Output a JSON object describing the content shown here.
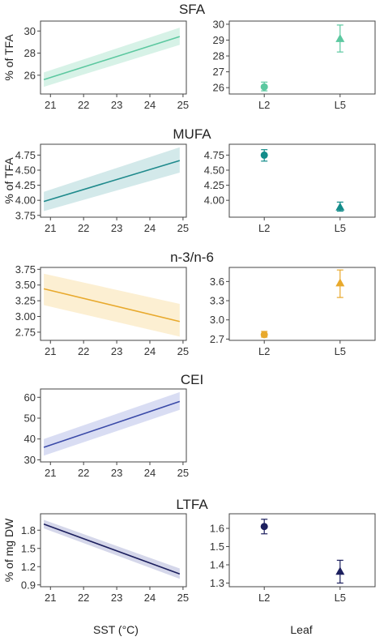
{
  "figure": {
    "x_axis_label_left": "SST (°C)",
    "x_axis_label_right": "Leaf"
  },
  "chart_data": [
    {
      "title": "SFA",
      "trend": {
        "type": "line",
        "ylabel": "% of TFA",
        "xlim": [
          20.7,
          25.1
        ],
        "ylim": [
          24.3,
          30.9
        ],
        "x_ticks": [
          21,
          22,
          23,
          24,
          25
        ],
        "y_ticks": [
          26,
          28,
          30
        ],
        "x": [
          20.8,
          24.9
        ],
        "y": [
          25.6,
          29.5
        ],
        "ci_lower": [
          24.95,
          28.75
        ],
        "ci_upper": [
          26.25,
          30.3
        ],
        "color": "#5cc8a0",
        "fill": "#d7f2e7"
      },
      "leaf": {
        "type": "scatter",
        "show": true,
        "ylabel": "",
        "categories": [
          "L2",
          "L5"
        ],
        "values": [
          26.05,
          29.1
        ],
        "err_low": [
          25.8,
          28.25
        ],
        "err_high": [
          26.35,
          29.95
        ],
        "markers": [
          "circle",
          "triangle"
        ],
        "ylim": [
          25.6,
          30.2
        ],
        "y_ticks": [
          26,
          27,
          28,
          29,
          30
        ],
        "color": "#5cc8a0"
      }
    },
    {
      "title": "MUFA",
      "trend": {
        "type": "line",
        "ylabel": "% of TFA",
        "xlim": [
          20.7,
          25.1
        ],
        "ylim": [
          3.72,
          4.93
        ],
        "x_ticks": [
          21,
          22,
          23,
          24,
          25
        ],
        "y_ticks": [
          3.75,
          4.0,
          4.25,
          4.5,
          4.75
        ],
        "y_tick_labels": [
          "3.75",
          "4.00",
          "4.25",
          "4.50",
          "4.75"
        ],
        "x": [
          20.8,
          24.9
        ],
        "y": [
          3.98,
          4.66
        ],
        "ci_lower": [
          3.82,
          4.46
        ],
        "ci_upper": [
          4.14,
          4.88
        ],
        "color": "#1f8a8c",
        "fill": "#d3e9ea"
      },
      "leaf": {
        "type": "scatter",
        "show": true,
        "ylabel": "",
        "categories": [
          "L2",
          "L5"
        ],
        "values": [
          4.75,
          3.89
        ],
        "err_low": [
          4.65,
          3.82
        ],
        "err_high": [
          4.84,
          3.97
        ],
        "markers": [
          "circle",
          "triangle"
        ],
        "ylim": [
          3.72,
          4.93
        ],
        "y_ticks": [
          4.0,
          4.25,
          4.5,
          4.75
        ],
        "y_tick_labels": [
          "4.00",
          "4.25",
          "4.50",
          "4.75"
        ],
        "color": "#138c8a"
      }
    },
    {
      "title": "n-3/n-6",
      "trend": {
        "type": "line",
        "ylabel": "",
        "xlim": [
          20.7,
          25.1
        ],
        "ylim": [
          2.62,
          3.78
        ],
        "x_ticks": [
          21,
          22,
          23,
          24,
          25
        ],
        "y_ticks": [
          2.75,
          3.0,
          3.25,
          3.5,
          3.75
        ],
        "y_tick_labels": [
          "2.75",
          "3.00",
          "3.25",
          "3.50",
          "3.75"
        ],
        "x": [
          20.8,
          24.9
        ],
        "y": [
          3.44,
          2.92
        ],
        "ci_lower": [
          3.18,
          2.68
        ],
        "ci_upper": [
          3.68,
          3.2
        ],
        "color": "#e8a92c",
        "fill": "#fcefd2"
      },
      "leaf": {
        "type": "scatter",
        "show": true,
        "ylabel": "",
        "categories": [
          "L2",
          "L5"
        ],
        "values": [
          2.77,
          3.58
        ],
        "err_low": [
          2.73,
          3.35
        ],
        "err_high": [
          2.82,
          3.78
        ],
        "markers": [
          "circle",
          "triangle"
        ],
        "ylim": [
          2.68,
          3.82
        ],
        "y_ticks": [
          2.7,
          3.0,
          3.3,
          3.6
        ],
        "y_tick_labels": [
          "2.7",
          "3.0",
          "3.3",
          "3.6"
        ],
        "color": "#e8a92c"
      }
    },
    {
      "title": "CEI",
      "trend": {
        "type": "line",
        "ylabel": "",
        "xlim": [
          20.7,
          25.1
        ],
        "ylim": [
          29,
          64
        ],
        "x_ticks": [
          21,
          22,
          23,
          24,
          25
        ],
        "y_ticks": [
          30,
          40,
          50,
          60
        ],
        "x": [
          20.8,
          24.9
        ],
        "y": [
          36,
          58
        ],
        "ci_lower": [
          32,
          54
        ],
        "ci_upper": [
          40,
          62.5
        ],
        "color": "#3a4aa8",
        "fill": "#d9ddf3"
      },
      "leaf": {
        "show": false
      }
    },
    {
      "title": "LTFA",
      "trend": {
        "type": "line",
        "ylabel": "% of mg DW",
        "xlim": [
          20.7,
          25.1
        ],
        "ylim": [
          0.87,
          2.07
        ],
        "x_ticks": [
          21,
          22,
          23,
          24,
          25
        ],
        "y_ticks": [
          0.9,
          1.2,
          1.5,
          1.8
        ],
        "y_tick_labels": [
          "0.9",
          "1.2",
          "1.5",
          "1.8"
        ],
        "x": [
          20.8,
          24.9
        ],
        "y": [
          1.9,
          1.08
        ],
        "ci_lower": [
          1.83,
          1.0
        ],
        "ci_upper": [
          1.97,
          1.17
        ],
        "color": "#1c1f5e",
        "fill": "#d5d7ea"
      },
      "leaf": {
        "type": "scatter",
        "show": true,
        "ylabel": "",
        "categories": [
          "L2",
          "L5"
        ],
        "values": [
          1.61,
          1.365
        ],
        "err_low": [
          1.57,
          1.3
        ],
        "err_high": [
          1.65,
          1.425
        ],
        "markers": [
          "circle",
          "triangle"
        ],
        "ylim": [
          1.28,
          1.68
        ],
        "y_ticks": [
          1.3,
          1.4,
          1.5,
          1.6
        ],
        "y_tick_labels": [
          "1.3",
          "1.4",
          "1.5",
          "1.6"
        ],
        "color": "#1c1f5e"
      }
    }
  ]
}
